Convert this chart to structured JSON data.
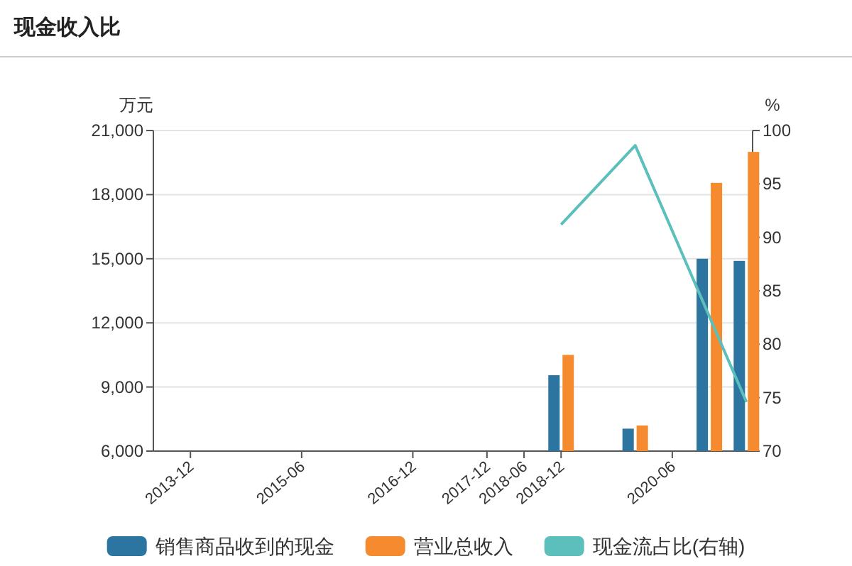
{
  "chart_data": {
    "type": "bar",
    "title": "现金收入比",
    "ylabel": "万元",
    "y2label": "%",
    "x": [
      "2018-12",
      "2019-12",
      "2020-12",
      "2021-06"
    ],
    "xlim": [
      "2013-06",
      "2021-07"
    ],
    "xticks": [
      "2013-12",
      "2015-06",
      "2016-12",
      "2017-12",
      "2018-06",
      "2018-12",
      "2020-06"
    ],
    "ylim": [
      6000,
      21000
    ],
    "yticks": [
      {
        "value": 6000,
        "label": "6,000"
      },
      {
        "value": 9000,
        "label": "9,000"
      },
      {
        "value": 12000,
        "label": "12,000"
      },
      {
        "value": 15000,
        "label": "15,000"
      },
      {
        "value": 18000,
        "label": "18,000"
      },
      {
        "value": 21000,
        "label": "21,000"
      }
    ],
    "y2lim": [
      70,
      100
    ],
    "y2ticks": [
      70,
      75,
      80,
      85,
      90,
      95,
      100
    ],
    "grid": "y",
    "legend": "bottom",
    "series": [
      {
        "name": "销售商品收到的现金",
        "color": "#2b75a0",
        "values": [
          9550,
          7050,
          15000,
          14900
        ]
      },
      {
        "name": "营业总收入",
        "color": "#f58a2f",
        "values": [
          10500,
          7200,
          18550,
          20000
        ]
      },
      {
        "name": "现金流占比(右轴)",
        "type": "line",
        "axis": "y2",
        "color": "#5bbfbc",
        "x": [
          "2018-12",
          "2019-12",
          "2021-06"
        ],
        "values": [
          91.2,
          98.6,
          74.6
        ]
      }
    ]
  }
}
